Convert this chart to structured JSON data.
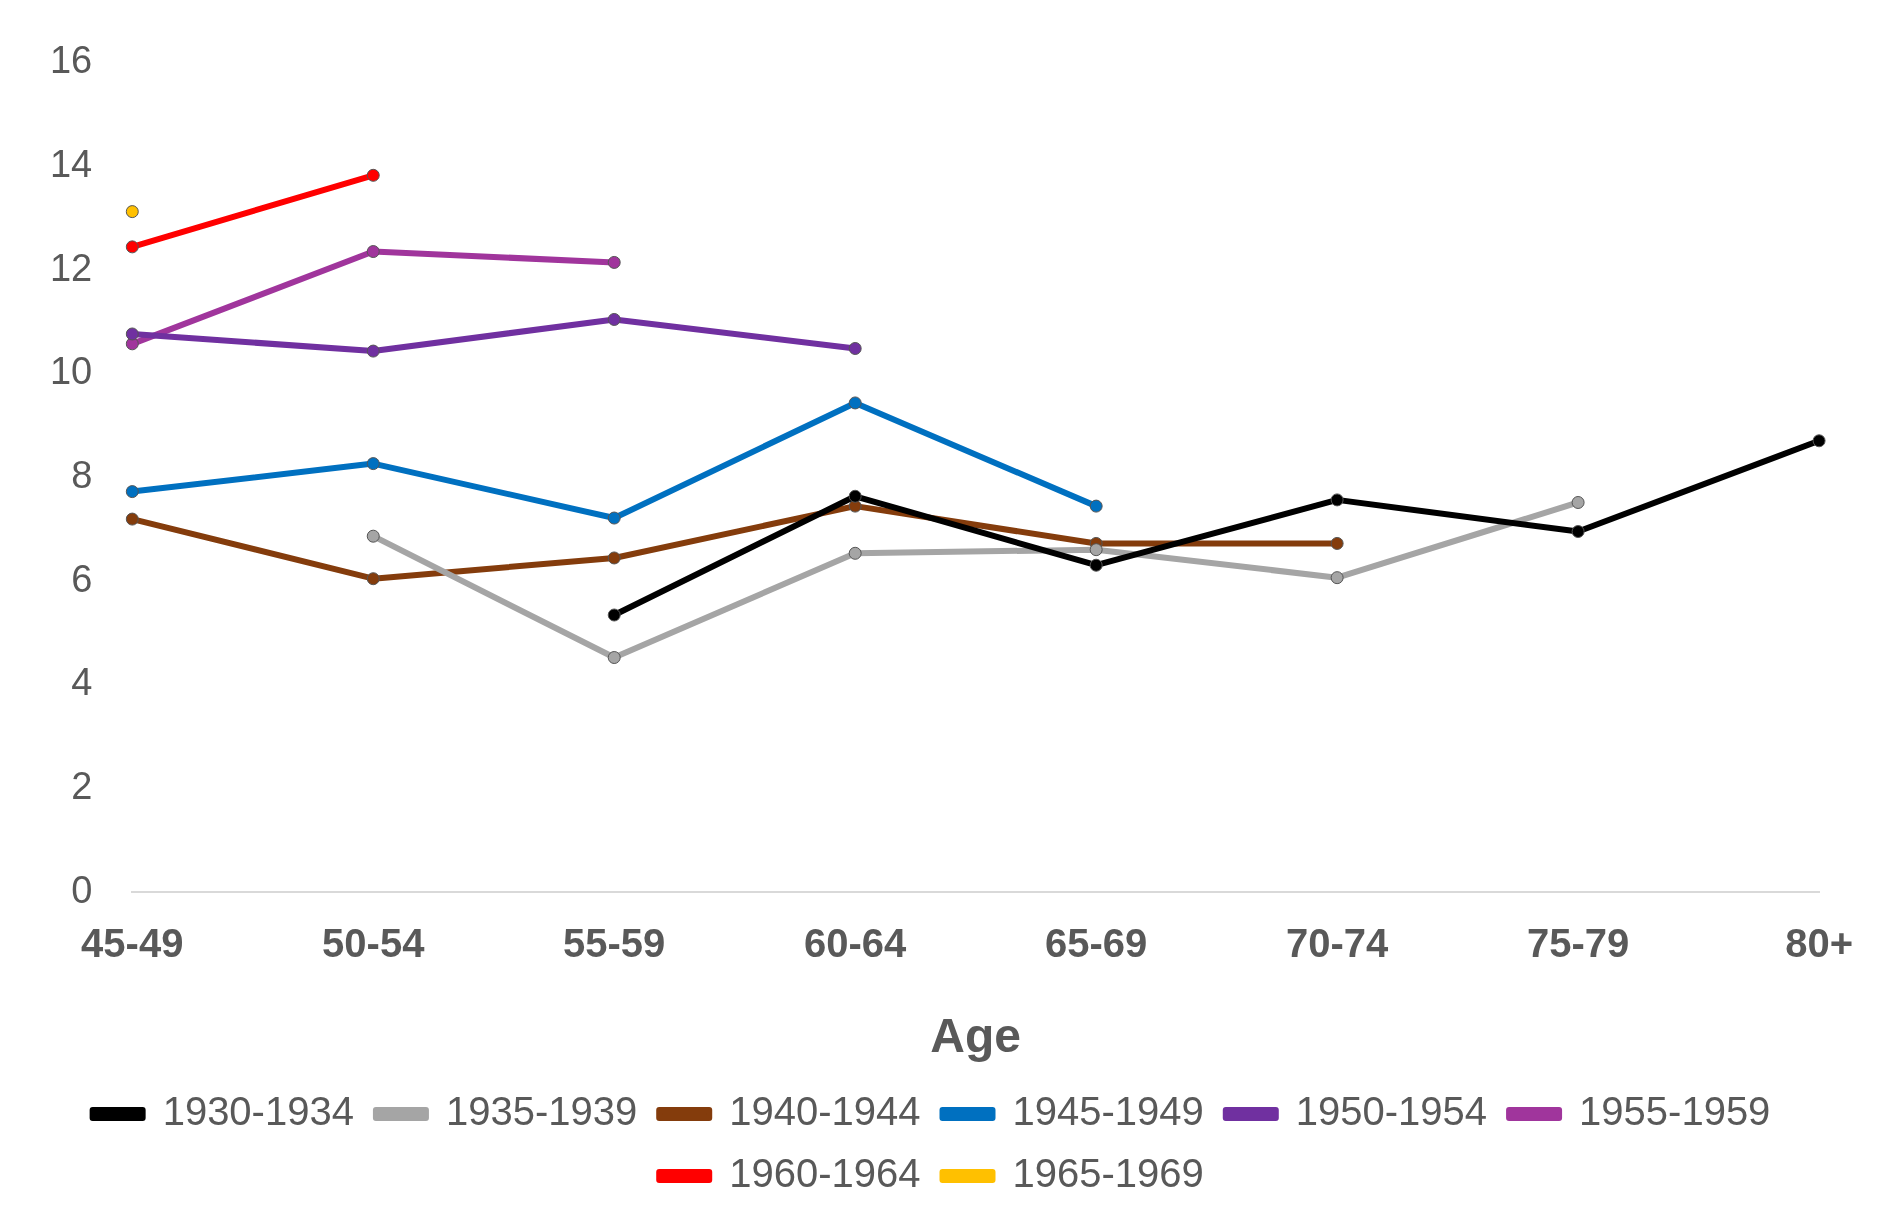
{
  "chart_data": {
    "type": "line",
    "xlabel": "Age",
    "categories": [
      "45-49",
      "50-54",
      "55-59",
      "60-64",
      "65-69",
      "70-74",
      "75-79",
      "80+"
    ],
    "ylim": [
      0,
      16
    ],
    "yticks": [
      0,
      2,
      4,
      6,
      8,
      10,
      12,
      14,
      16
    ],
    "grid": false,
    "legend": "bottom",
    "marker": "circle",
    "line_style": "solid",
    "series": [
      {
        "name": "1930-1934",
        "color": "#000000",
        "values": [
          null,
          null,
          5.35,
          7.64,
          6.31,
          7.57,
          6.96,
          8.71
        ]
      },
      {
        "name": "1935-1939",
        "color": "#a5a5a5",
        "values": [
          null,
          6.87,
          4.53,
          6.54,
          6.61,
          6.07,
          7.52,
          null
        ]
      },
      {
        "name": "1940-1944",
        "color": "#843c0c",
        "values": [
          7.2,
          6.05,
          6.45,
          7.45,
          6.73,
          6.73,
          null,
          null
        ]
      },
      {
        "name": "1945-1949",
        "color": "#0070c0",
        "values": [
          7.73,
          8.27,
          7.22,
          9.44,
          7.45,
          null,
          null,
          null
        ]
      },
      {
        "name": "1950-1954",
        "color": "#7030a0",
        "values": [
          10.77,
          10.44,
          11.05,
          10.49,
          null,
          null,
          null,
          null
        ]
      },
      {
        "name": "1955-1959",
        "color": "#a0359c",
        "values": [
          10.58,
          12.36,
          12.15,
          null,
          null,
          null,
          null,
          null
        ]
      },
      {
        "name": "1960-1964",
        "color": "#ff0000",
        "values": [
          12.45,
          13.83,
          null,
          null,
          null,
          null,
          null,
          null
        ]
      },
      {
        "name": "1965-1969",
        "color": "#ffc000",
        "values": [
          13.13,
          null,
          null,
          null,
          null,
          null,
          null,
          null
        ]
      }
    ]
  }
}
